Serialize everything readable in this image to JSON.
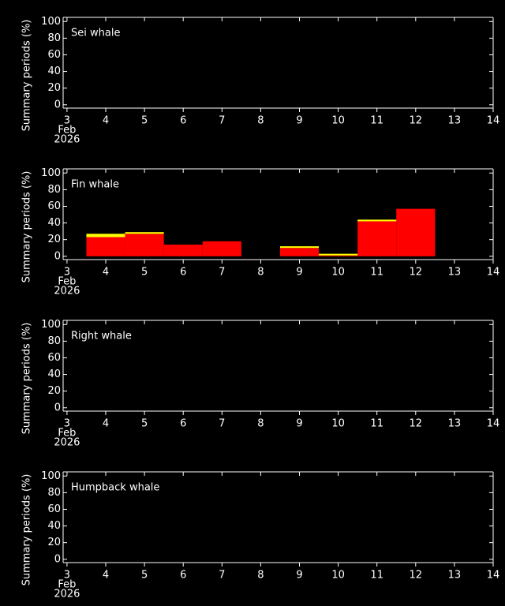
{
  "chart_data": [
    {
      "type": "bar",
      "title": "Sei whale",
      "ylabel": "Summary periods (%)",
      "x_month": "Feb",
      "x_year": "2026",
      "xlim": [
        2.9,
        14
      ],
      "xticks": [
        3,
        4,
        5,
        6,
        7,
        8,
        9,
        10,
        11,
        12,
        13,
        14
      ],
      "ylim": [
        -4,
        105
      ],
      "yticks": [
        0,
        20,
        40,
        60,
        80,
        100
      ]
    },
    {
      "type": "bar",
      "title": "Fin whale",
      "ylabel": "Summary periods (%)",
      "x_month": "Feb",
      "x_year": "2026",
      "xlim": [
        2.9,
        14
      ],
      "xticks": [
        3,
        4,
        5,
        6,
        7,
        8,
        9,
        10,
        11,
        12,
        13,
        14
      ],
      "ylim": [
        -4,
        105
      ],
      "yticks": [
        0,
        20,
        40,
        60,
        80,
        100
      ],
      "x": [
        4,
        5,
        6,
        7,
        8,
        9,
        10,
        11,
        12
      ],
      "series": [
        {
          "color": "#ff0000",
          "values": [
            23,
            27,
            14,
            18,
            0,
            10,
            1,
            42,
            57
          ]
        },
        {
          "color": "#ffff00",
          "values": [
            4,
            2,
            0,
            0,
            0,
            2,
            2,
            2,
            0
          ]
        }
      ]
    },
    {
      "type": "bar",
      "title": "Right whale",
      "ylabel": "Summary periods (%)",
      "x_month": "Feb",
      "x_year": "2026",
      "xlim": [
        2.9,
        14
      ],
      "xticks": [
        3,
        4,
        5,
        6,
        7,
        8,
        9,
        10,
        11,
        12,
        13,
        14
      ],
      "ylim": [
        -4,
        105
      ],
      "yticks": [
        0,
        20,
        40,
        60,
        80,
        100
      ]
    },
    {
      "type": "bar",
      "title": "Humpback whale",
      "ylabel": "Summary periods (%)",
      "x_month": "Feb",
      "x_year": "2026",
      "xlim": [
        2.9,
        14
      ],
      "xticks": [
        3,
        4,
        5,
        6,
        7,
        8,
        9,
        10,
        11,
        12,
        13,
        14
      ],
      "ylim": [
        -4,
        105
      ],
      "yticks": [
        0,
        20,
        40,
        60,
        80,
        100
      ]
    }
  ]
}
